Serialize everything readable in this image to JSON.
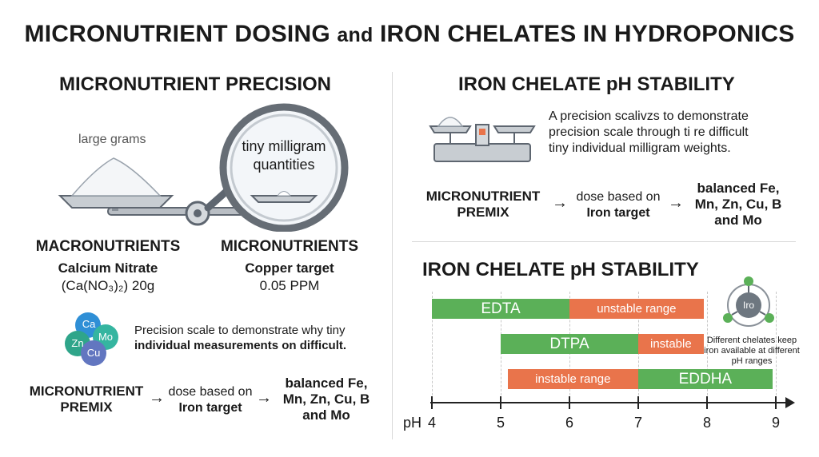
{
  "title": {
    "part1": "MICRONUTRIENT DOSING",
    "part2": "and",
    "part3": "IRON CHELATES IN HYDROPONICS"
  },
  "left": {
    "heading": "MICRONUTRIENT PRECISION",
    "large_label": "large grams",
    "magnifier_text": "tiny milligram quantities",
    "macro": {
      "heading": "MACRONUTRIENTS",
      "line1": "Calcium Nitrate",
      "line2": "(Ca(NO₃)₂) 20g"
    },
    "micro": {
      "heading": "MICRONUTRIENTS",
      "line1": "Copper target",
      "line2": "0.05 PPM"
    },
    "elements": [
      "Ca",
      "Mo",
      "Zn",
      "Cu"
    ],
    "note_line1": "Precision scale to demonstrate why tiny",
    "note_line2": "individual measurements on difficult.",
    "flow": {
      "step1": "MICRONUTRIENT PREMIX",
      "step2a": "dose based on",
      "step2b": "Iron target",
      "step3": "balanced Fe, Mn, Zn, Cu, B and Mo"
    }
  },
  "right_top": {
    "heading": "IRON CHELATE pH STABILITY",
    "desc_line1": "A precision scalivzs to demonstrate",
    "desc_line2": "precision scale through ti re difficult",
    "desc_line3": "tiny individual milligram weights.",
    "flow": {
      "step1": "MICRONUTRIENT PREMIX",
      "step2a": "dose based on",
      "step2b": "Iron target",
      "step3": "balanced Fe, Mn, Zn, Cu, B and Mo"
    }
  },
  "right_bottom": {
    "heading": "IRON CHELATE pH STABILITY",
    "icon_label": "Iro",
    "note": "Different chelates keep iron available at different pH ranges"
  },
  "chart_data": {
    "type": "bar",
    "xlabel": "pH",
    "xlim": [
      4,
      9
    ],
    "ticks": [
      4,
      5,
      6,
      7,
      8,
      9
    ],
    "rows": [
      {
        "segments": [
          {
            "label": "EDTA",
            "start": 4.0,
            "end": 6.0,
            "color": "#5bb058"
          },
          {
            "label": "unstable range",
            "start": 6.0,
            "end": 7.95,
            "color": "#e9744b"
          }
        ]
      },
      {
        "segments": [
          {
            "label": "DTPA",
            "start": 5.0,
            "end": 7.0,
            "color": "#5bb058"
          },
          {
            "label": "instable",
            "start": 7.0,
            "end": 7.95,
            "color": "#e9744b"
          }
        ]
      },
      {
        "segments": [
          {
            "label": "instable range",
            "start": 5.1,
            "end": 7.0,
            "color": "#e9744b"
          },
          {
            "label": "EDDHA",
            "start": 7.0,
            "end": 8.95,
            "color": "#5bb058"
          }
        ]
      }
    ]
  }
}
